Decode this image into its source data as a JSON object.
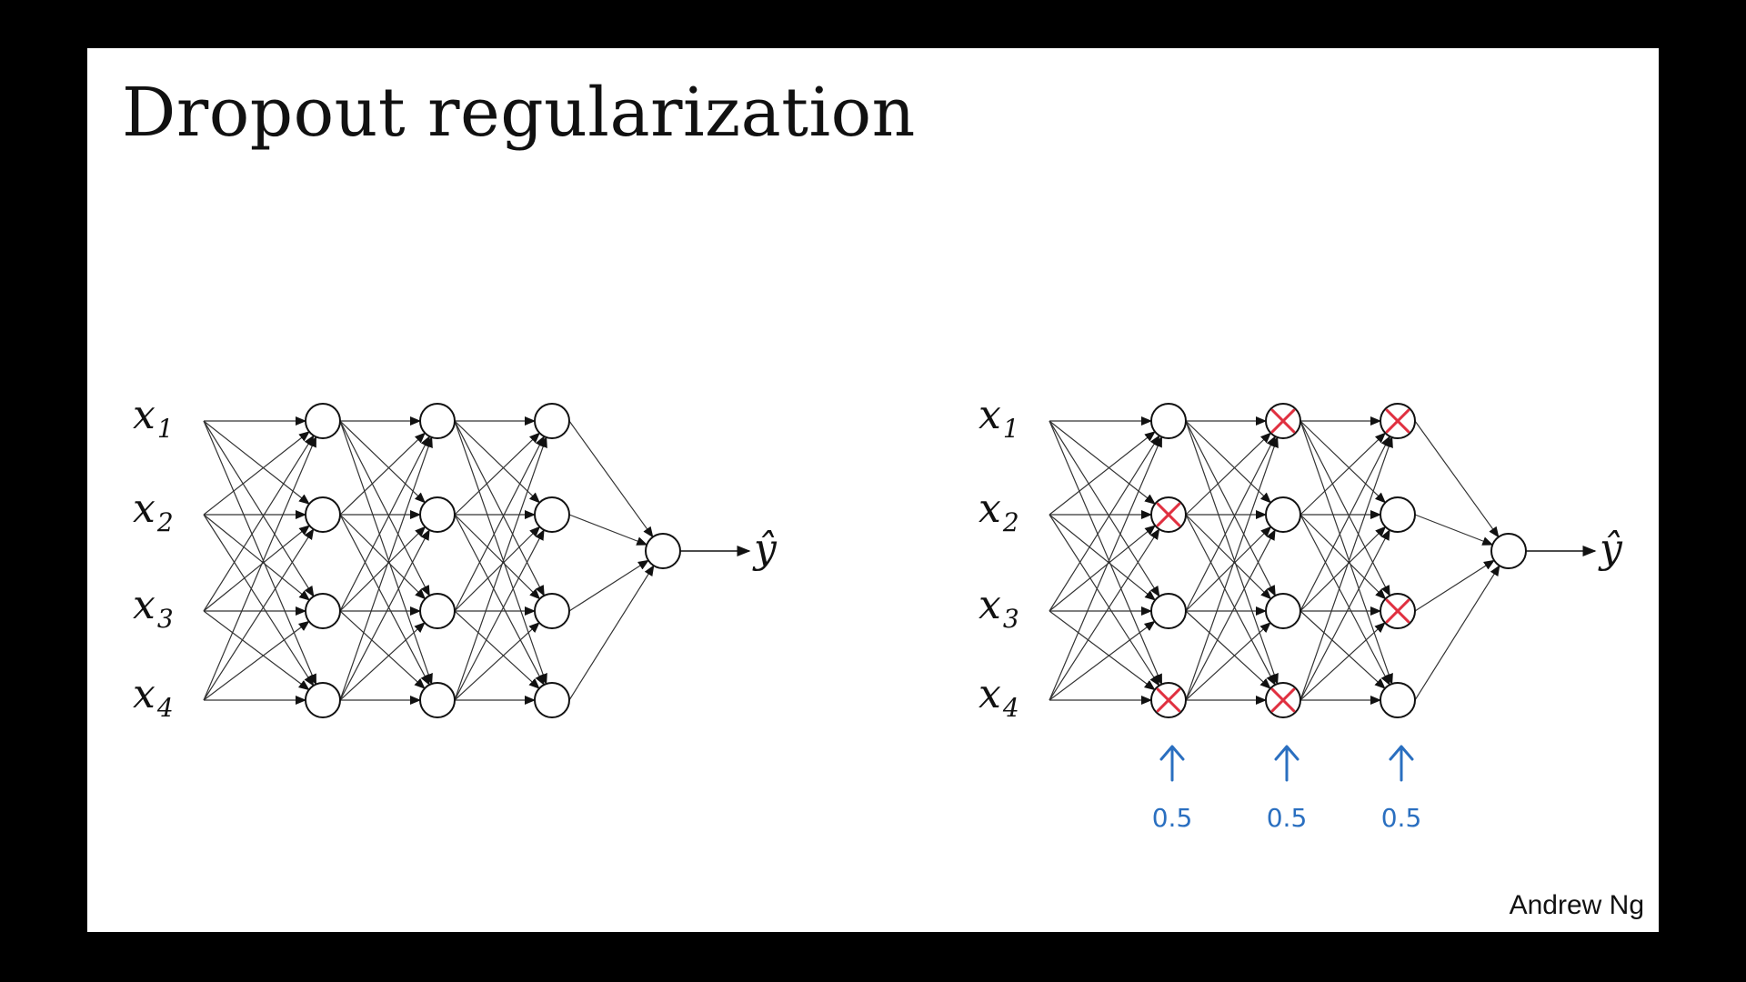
{
  "slide": {
    "title": "Dropout regularization",
    "author": "Andrew Ng"
  },
  "colors": {
    "background": "#000000",
    "slide": "#ffffff",
    "dropout_mark": "#e03040",
    "annotation": "#2a6fc0"
  },
  "networks": [
    {
      "name": "full-network",
      "inputs": [
        {
          "base": "x",
          "sub": "1"
        },
        {
          "base": "x",
          "sub": "2"
        },
        {
          "base": "x",
          "sub": "3"
        },
        {
          "base": "x",
          "sub": "4"
        }
      ],
      "hidden_layers": [
        {
          "units": 4,
          "dropped": [
            false,
            false,
            false,
            false
          ]
        },
        {
          "units": 4,
          "dropped": [
            false,
            false,
            false,
            false
          ]
        },
        {
          "units": 4,
          "dropped": [
            false,
            false,
            false,
            false
          ]
        }
      ],
      "output_label": "ŷ",
      "keep_probs": []
    },
    {
      "name": "dropout-network",
      "inputs": [
        {
          "base": "x",
          "sub": "1"
        },
        {
          "base": "x",
          "sub": "2"
        },
        {
          "base": "x",
          "sub": "3"
        },
        {
          "base": "x",
          "sub": "4"
        }
      ],
      "hidden_layers": [
        {
          "units": 4,
          "dropped": [
            false,
            true,
            false,
            true
          ]
        },
        {
          "units": 4,
          "dropped": [
            true,
            false,
            false,
            true
          ]
        },
        {
          "units": 4,
          "dropped": [
            true,
            false,
            true,
            false
          ]
        }
      ],
      "output_label": "ŷ",
      "keep_probs": [
        "0.5",
        "0.5",
        "0.5"
      ]
    }
  ]
}
